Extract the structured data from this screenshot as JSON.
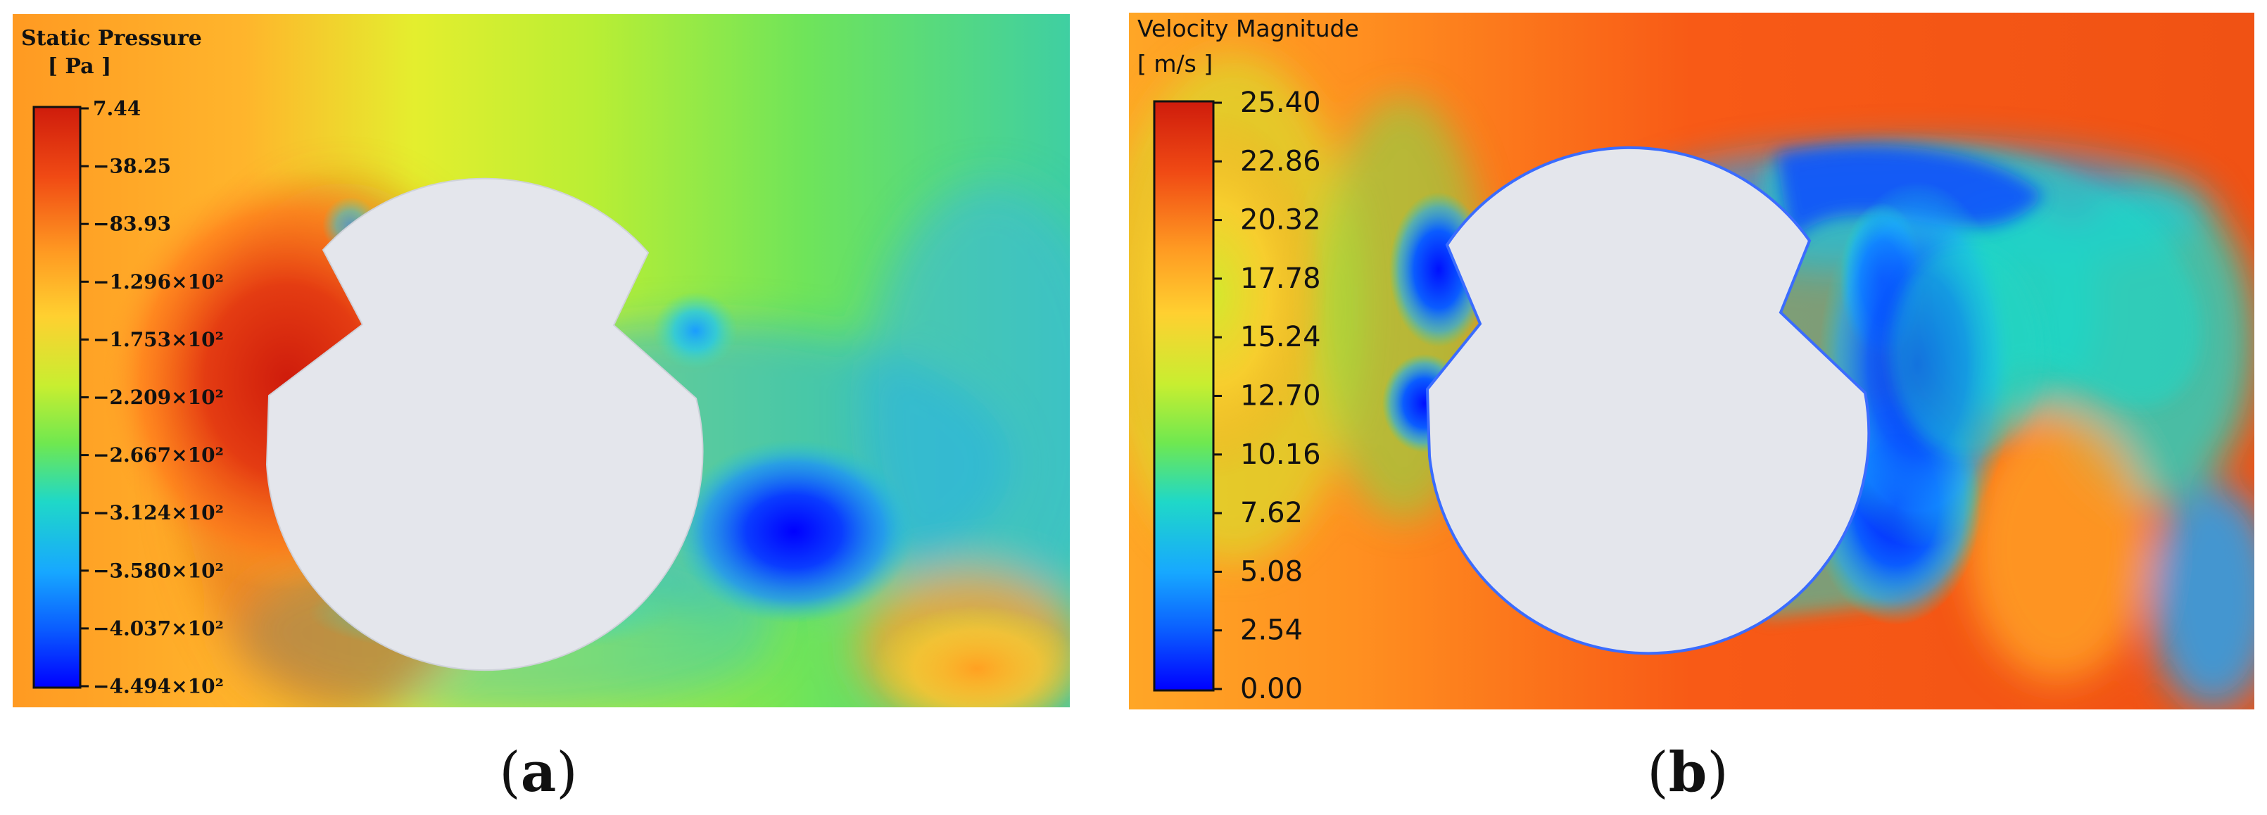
{
  "panel_a": {
    "legend_title": "Static Pressure",
    "legend_unit": "[ Pa ]",
    "ticks": [
      "7.44",
      "−38.25",
      "−83.93",
      "−1.296×10²",
      "−1.753×10²",
      "−2.209×10²",
      "−2.667×10²",
      "−3.124×10²",
      "−3.580×10²",
      "−4.037×10²",
      "−4.494×10²"
    ],
    "caption_letter": "a"
  },
  "panel_b": {
    "legend_title": "Velocity Magnitude",
    "legend_unit": "[ m/s ]",
    "ticks": [
      "25.40",
      "22.86",
      "20.32",
      "17.78",
      "15.24",
      "12.70",
      "10.16",
      "7.62",
      "5.08",
      "2.54",
      "0.00"
    ],
    "caption_letter": "b"
  },
  "colors": {
    "body_fill": "#e4e6ec",
    "scale": [
      "#0000ff",
      "#0a5cff",
      "#17a8ff",
      "#1fd8c8",
      "#7fee48",
      "#cfee2e",
      "#ffd030",
      "#ff9a22",
      "#f05a14",
      "#cf1c0c"
    ]
  }
}
